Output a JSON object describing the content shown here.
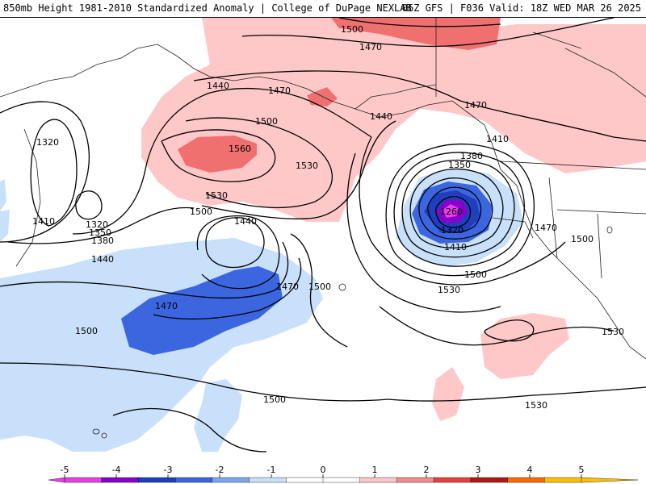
{
  "header": {
    "title_left": "850mb Height 1981-2010 Standardized Anomaly | College of DuPage NEXLAB",
    "title_right": "06Z GFS | F036 Valid: 18Z WED MAR 26 2025"
  },
  "contour_labels": [
    {
      "id": "c1500-top",
      "text": "1500"
    },
    {
      "id": "c1470-top",
      "text": "1470"
    },
    {
      "id": "c1470-ne",
      "text": "1470"
    },
    {
      "id": "c1440-nw",
      "text": "1440"
    },
    {
      "id": "c1470-ak",
      "text": "1470"
    },
    {
      "id": "c1320-w",
      "text": "1320"
    },
    {
      "id": "c1500-gulf",
      "text": "1500"
    },
    {
      "id": "c1440-bc",
      "text": "1440"
    },
    {
      "id": "c1410-bc",
      "text": "1410"
    },
    {
      "id": "c1560",
      "text": "1560"
    },
    {
      "id": "c1530-a",
      "text": "1530"
    },
    {
      "id": "c1380-low",
      "text": "1380"
    },
    {
      "id": "c1350-low",
      "text": "1350"
    },
    {
      "id": "c1530-b",
      "text": "1530"
    },
    {
      "id": "c1500-mid",
      "text": "1500"
    },
    {
      "id": "c1440-mid",
      "text": "1440"
    },
    {
      "id": "c1410-w",
      "text": "1410"
    },
    {
      "id": "c1320-w2",
      "text": "1320"
    },
    {
      "id": "c1350-w",
      "text": "1350"
    },
    {
      "id": "c1380-w",
      "text": "1380"
    },
    {
      "id": "c1440-w",
      "text": "1440"
    },
    {
      "id": "c1260",
      "text": "1260"
    },
    {
      "id": "c1320-low",
      "text": "1320"
    },
    {
      "id": "c1410-low",
      "text": "1410"
    },
    {
      "id": "c1470-land",
      "text": "1470"
    },
    {
      "id": "c1500-land",
      "text": "1500"
    },
    {
      "id": "c1500-low",
      "text": "1500"
    },
    {
      "id": "c1470-pac",
      "text": "1470"
    },
    {
      "id": "c1500-pac",
      "text": "1500"
    },
    {
      "id": "c1470-pac2",
      "text": "1470"
    },
    {
      "id": "c1500-pacw",
      "text": "1500"
    },
    {
      "id": "c1530-s",
      "text": "1530"
    },
    {
      "id": "c1530-se",
      "text": "1530"
    },
    {
      "id": "c1500-s",
      "text": "1500"
    },
    {
      "id": "c1530-e",
      "text": "1530"
    }
  ],
  "legend": {
    "ticks": [
      "-5",
      "-4",
      "-3",
      "-2",
      "-1",
      "0",
      "1",
      "2",
      "3",
      "4",
      "5"
    ],
    "colors": [
      "#e83ee8",
      "#8800cc",
      "#1f3fbf",
      "#3b66e0",
      "#7fa7f0",
      "#c8e0fa",
      "#ffffff",
      "#ffffff",
      "#ffc8c8",
      "#f58c8c",
      "#e84040",
      "#b01818",
      "#ff6a00",
      "#ffc000"
    ]
  }
}
